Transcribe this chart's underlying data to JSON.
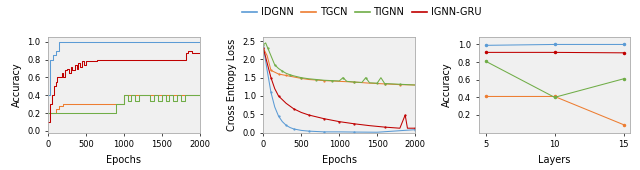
{
  "legend_labels": [
    "IDGNN",
    "TGCN",
    "TlGNN",
    "IGNN-GRU"
  ],
  "legend_display": [
    "IDGNN",
    "TGCN",
    "TlGNN",
    "IGNN-GRU"
  ],
  "colors": {
    "IDGNN": "#5b9bd5",
    "TGCN": "#ed7d31",
    "TlGNN": "#70ad47",
    "IGNN-GRU": "#c00000"
  },
  "plot1": {
    "xlabel": "Epochs",
    "ylabel": "Accuracy",
    "xlim": [
      0,
      2000
    ],
    "ylim": [
      -0.02,
      1.05
    ],
    "yticks": [
      0.0,
      0.2,
      0.4,
      0.6,
      0.8,
      1.0
    ],
    "xticks": [
      0,
      500,
      1000,
      1500,
      2000
    ],
    "IDGNN": {
      "x": [
        0,
        30,
        60,
        100,
        150,
        200,
        250,
        300,
        2000
      ],
      "y": [
        0.4,
        0.8,
        0.85,
        0.9,
        1.0,
        1.0,
        1.0,
        1.0,
        1.0
      ]
    },
    "TGCN": {
      "x": [
        0,
        50,
        100,
        150,
        200,
        300,
        400,
        500,
        700,
        1000,
        1200,
        1500,
        2000
      ],
      "y": [
        0.2,
        0.2,
        0.25,
        0.28,
        0.3,
        0.3,
        0.3,
        0.3,
        0.3,
        0.4,
        0.4,
        0.4,
        0.4
      ]
    },
    "TlGNN": {
      "x": [
        0,
        50,
        100,
        200,
        300,
        400,
        600,
        700,
        800,
        900,
        1000,
        1050,
        1100,
        1150,
        1200,
        1300,
        1350,
        1400,
        1450,
        1500,
        1550,
        1600,
        1650,
        1700,
        1750,
        1800,
        2000
      ],
      "y": [
        0.2,
        0.2,
        0.2,
        0.2,
        0.2,
        0.2,
        0.2,
        0.2,
        0.2,
        0.3,
        0.4,
        0.33,
        0.4,
        0.33,
        0.4,
        0.4,
        0.33,
        0.4,
        0.33,
        0.4,
        0.33,
        0.4,
        0.33,
        0.4,
        0.33,
        0.4,
        0.4
      ]
    },
    "IGNN-GRU": {
      "x": [
        0,
        30,
        50,
        80,
        100,
        120,
        150,
        180,
        200,
        230,
        250,
        280,
        300,
        320,
        350,
        380,
        400,
        420,
        450,
        480,
        500,
        550,
        600,
        650,
        700,
        750,
        800,
        850,
        900,
        1000,
        1200,
        1500,
        1800,
        1820,
        1850,
        1900,
        2000
      ],
      "y": [
        0.1,
        0.3,
        0.4,
        0.5,
        0.55,
        0.6,
        0.6,
        0.65,
        0.6,
        0.68,
        0.7,
        0.65,
        0.72,
        0.68,
        0.74,
        0.7,
        0.76,
        0.72,
        0.78,
        0.74,
        0.78,
        0.79,
        0.79,
        0.8,
        0.8,
        0.8,
        0.8,
        0.8,
        0.8,
        0.8,
        0.8,
        0.8,
        0.8,
        0.88,
        0.9,
        0.88,
        0.88
      ]
    }
  },
  "plot2": {
    "xlabel": "Epochs",
    "ylabel": "Cross Entropy Loss",
    "xlim": [
      0,
      2000
    ],
    "ylim": [
      0.0,
      2.6
    ],
    "yticks": [
      0.0,
      0.5,
      1.0,
      1.5,
      2.0,
      2.5
    ],
    "xticks": [
      0,
      500,
      1000,
      1500,
      2000
    ],
    "IDGNN": {
      "x": [
        0,
        50,
        100,
        150,
        200,
        250,
        300,
        350,
        400,
        500,
        600,
        700,
        800,
        1000,
        1200,
        1500,
        2000
      ],
      "y": [
        2.35,
        1.7,
        1.1,
        0.7,
        0.45,
        0.3,
        0.2,
        0.14,
        0.1,
        0.06,
        0.04,
        0.03,
        0.02,
        0.02,
        0.015,
        0.01,
        0.08
      ]
    },
    "TGCN": {
      "x": [
        0,
        50,
        100,
        150,
        200,
        250,
        300,
        400,
        500,
        600,
        800,
        1000,
        1200,
        1400,
        1600,
        1700,
        1800,
        2000
      ],
      "y": [
        2.3,
        2.1,
        1.7,
        1.65,
        1.6,
        1.58,
        1.56,
        1.52,
        1.48,
        1.45,
        1.42,
        1.4,
        1.38,
        1.35,
        1.33,
        1.32,
        1.31,
        1.3
      ]
    },
    "TlGNN": {
      "x": [
        0,
        30,
        60,
        100,
        150,
        200,
        250,
        300,
        350,
        400,
        500,
        600,
        700,
        800,
        900,
        1000,
        1050,
        1100,
        1200,
        1300,
        1350,
        1400,
        1500,
        1550,
        1600,
        1700,
        1800,
        2000
      ],
      "y": [
        2.4,
        2.45,
        2.3,
        2.1,
        1.85,
        1.75,
        1.68,
        1.62,
        1.58,
        1.55,
        1.5,
        1.47,
        1.45,
        1.43,
        1.42,
        1.41,
        1.5,
        1.4,
        1.38,
        1.37,
        1.5,
        1.36,
        1.35,
        1.5,
        1.34,
        1.33,
        1.32,
        1.3
      ]
    },
    "IGNN-GRU": {
      "x": [
        0,
        50,
        100,
        150,
        200,
        300,
        400,
        500,
        600,
        700,
        800,
        900,
        1000,
        1100,
        1200,
        1400,
        1600,
        1800,
        1870,
        1900,
        2000
      ],
      "y": [
        2.3,
        1.9,
        1.5,
        1.2,
        1.0,
        0.8,
        0.65,
        0.55,
        0.48,
        0.43,
        0.38,
        0.34,
        0.3,
        0.27,
        0.24,
        0.19,
        0.15,
        0.12,
        0.48,
        0.12,
        0.12
      ]
    }
  },
  "plot3": {
    "xlabel": "Layers",
    "ylabel": "Accuracy",
    "xlim": [
      4.5,
      15.5
    ],
    "ylim": [
      0.0,
      1.08
    ],
    "xticks": [
      5,
      10,
      15
    ],
    "yticks": [
      0.2,
      0.4,
      0.6,
      0.8,
      1.0
    ],
    "IDGNN": {
      "x": [
        5,
        10,
        15
      ],
      "y": [
        0.99,
        1.0,
        1.0
      ]
    },
    "TGCN": {
      "x": [
        5,
        10,
        15
      ],
      "y": [
        0.41,
        0.41,
        0.09
      ]
    },
    "TlGNN": {
      "x": [
        5,
        10,
        15
      ],
      "y": [
        0.81,
        0.4,
        0.61
      ]
    },
    "IGNN-GRU": {
      "x": [
        5,
        10,
        15
      ],
      "y": [
        0.91,
        0.91,
        0.905
      ]
    }
  },
  "bg_color": "#f0f0f0",
  "fig_color": "#ffffff",
  "spine_color": "#aaaaaa"
}
